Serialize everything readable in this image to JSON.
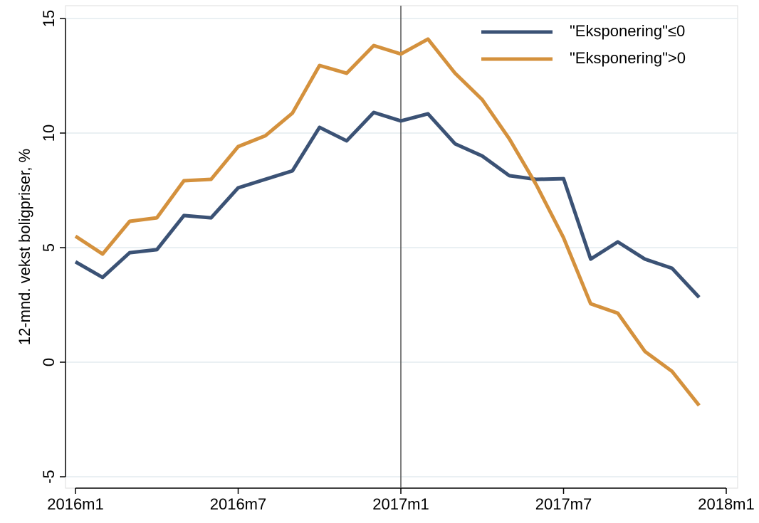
{
  "chart_data": {
    "type": "line",
    "y_label": "12-mnd. vekst boligpriser, %",
    "x": [
      0,
      1,
      2,
      3,
      4,
      5,
      6,
      7,
      8,
      9,
      10,
      11,
      12,
      13,
      14,
      15,
      16,
      17,
      18,
      19,
      20,
      21,
      22,
      23
    ],
    "xlim": [
      0,
      24
    ],
    "xticks": [
      {
        "value": 0,
        "label": "2016m1"
      },
      {
        "value": 6,
        "label": "2016m7"
      },
      {
        "value": 12,
        "label": "2017m1"
      },
      {
        "value": 18,
        "label": "2017m7"
      },
      {
        "value": 24,
        "label": "2018m1"
      }
    ],
    "vline": 12,
    "ylim": [
      -5,
      15
    ],
    "yticks": [
      -5,
      0,
      5,
      10,
      15
    ],
    "grid": true,
    "legend": "upper right",
    "series": [
      {
        "name": "\"Eksponering\"≤0",
        "color": "#3b5275",
        "values": [
          4.38,
          3.7,
          4.78,
          4.91,
          6.4,
          6.3,
          7.61,
          7.98,
          8.35,
          10.25,
          9.66,
          10.9,
          10.53,
          10.84,
          9.53,
          9.0,
          8.14,
          7.98,
          8.01,
          4.5,
          5.25,
          4.5,
          4.1,
          2.83
        ]
      },
      {
        "name": "\"Eksponering\">0",
        "color": "#d4913d",
        "values": [
          5.5,
          4.72,
          6.15,
          6.3,
          7.92,
          7.98,
          9.41,
          9.88,
          10.87,
          12.95,
          12.61,
          13.82,
          13.45,
          14.1,
          12.61,
          11.46,
          9.75,
          7.73,
          5.43,
          2.55,
          2.14,
          0.47,
          -0.4,
          -1.89
        ]
      }
    ]
  }
}
